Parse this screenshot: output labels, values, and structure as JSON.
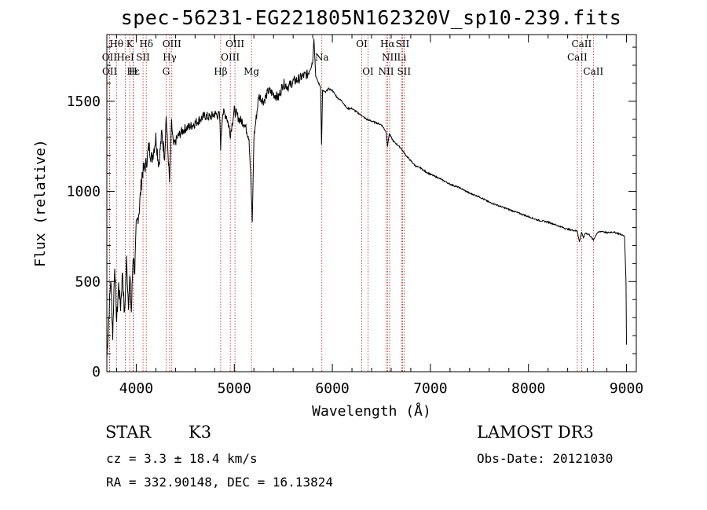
{
  "header": {
    "title": "spec-56231-EG221805N162320V_sp10-239.fits"
  },
  "info": {
    "obj_class": "STAR",
    "obj_subclass": "K3",
    "survey": "LAMOST DR3",
    "cz": "cz = 3.3 ± 18.4 km/s",
    "obs_date": "Obs-Date: 20121030",
    "radec": "RA = 332.90148, DEC =  16.13824"
  },
  "chart_data": {
    "type": "line",
    "title": "spec-56231-EG221805N162320V_sp10-239.fits",
    "xlabel": "Wavelength (Å)",
    "ylabel": "Flux (relative)",
    "xlim": [
      3700,
      9100
    ],
    "ylim": [
      0,
      1870
    ],
    "xticks": [
      4000,
      5000,
      6000,
      7000,
      8000,
      9000
    ],
    "yticks": [
      0,
      500,
      1000,
      1500
    ],
    "grid": false,
    "series": [
      {
        "name": "spectrum",
        "x": [
          3700,
          3720,
          3740,
          3760,
          3780,
          3800,
          3820,
          3840,
          3860,
          3880,
          3900,
          3920,
          3935,
          3950,
          3968,
          3985,
          4000,
          4030,
          4060,
          4100,
          4130,
          4160,
          4200,
          4230,
          4260,
          4290,
          4305,
          4320,
          4340,
          4360,
          4380,
          4420,
          4460,
          4500,
          4550,
          4600,
          4650,
          4700,
          4750,
          4800,
          4850,
          4861,
          4880,
          4920,
          4960,
          5000,
          5050,
          5100,
          5150,
          5170,
          5183,
          5200,
          5250,
          5300,
          5350,
          5400,
          5450,
          5500,
          5550,
          5600,
          5650,
          5700,
          5750,
          5780,
          5800,
          5812,
          5830,
          5860,
          5880,
          5890,
          5900,
          5930,
          5960,
          6000,
          6050,
          6100,
          6150,
          6200,
          6250,
          6300,
          6350,
          6400,
          6450,
          6500,
          6550,
          6563,
          6580,
          6620,
          6660,
          6700,
          6750,
          6800,
          6850,
          6900,
          6950,
          7000,
          7100,
          7200,
          7300,
          7400,
          7500,
          7600,
          7700,
          7800,
          7900,
          8000,
          8100,
          8200,
          8300,
          8400,
          8498,
          8520,
          8542,
          8560,
          8580,
          8620,
          8662,
          8700,
          8750,
          8800,
          8850,
          8900,
          8950,
          8980,
          8995,
          9000
        ],
        "values": [
          80,
          300,
          520,
          200,
          600,
          280,
          480,
          360,
          560,
          300,
          620,
          380,
          520,
          330,
          650,
          560,
          800,
          900,
          1100,
          1150,
          1250,
          1180,
          1300,
          1150,
          1320,
          1200,
          1420,
          1250,
          1050,
          1380,
          1250,
          1300,
          1330,
          1350,
          1360,
          1380,
          1400,
          1420,
          1410,
          1430,
          1420,
          1250,
          1440,
          1420,
          1320,
          1450,
          1400,
          1380,
          1300,
          1050,
          820,
          1300,
          1530,
          1500,
          1560,
          1540,
          1520,
          1600,
          1580,
          1610,
          1620,
          1640,
          1650,
          1700,
          1720,
          1850,
          1640,
          1600,
          1580,
          1260,
          1560,
          1550,
          1570,
          1560,
          1520,
          1500,
          1460,
          1460,
          1440,
          1420,
          1400,
          1390,
          1380,
          1370,
          1330,
          1250,
          1320,
          1280,
          1260,
          1240,
          1200,
          1170,
          1140,
          1130,
          1110,
          1095,
          1070,
          1040,
          1020,
          990,
          970,
          940,
          920,
          900,
          880,
          860,
          840,
          830,
          810,
          790,
          780,
          720,
          775,
          740,
          770,
          760,
          730,
          770,
          780,
          770,
          775,
          770,
          760,
          750,
          500,
          150
        ]
      }
    ],
    "lines_top": [
      {
        "label": "Hθ",
        "x": 3798,
        "row": 0
      },
      {
        "label": "K",
        "x": 3934,
        "row": 0
      },
      {
        "label": "Hδ",
        "x": 4102,
        "row": 0
      },
      {
        "label": "OIII",
        "x": 4363,
        "row": 0
      },
      {
        "label": "OIII",
        "x": 5007,
        "row": 0
      },
      {
        "label": "OI",
        "x": 6300,
        "row": 0
      },
      {
        "label": "Hα",
        "x": 6563,
        "row": 0
      },
      {
        "label": "SII",
        "x": 6716,
        "row": 0
      },
      {
        "label": "CaII",
        "x": 8542,
        "row": 0
      },
      {
        "label": "OII",
        "x": 3727,
        "row": 1
      },
      {
        "label": "HeI",
        "x": 3889,
        "row": 1
      },
      {
        "label": "SII",
        "x": 4069,
        "row": 1
      },
      {
        "label": "Hγ",
        "x": 4341,
        "row": 1
      },
      {
        "label": "OIII",
        "x": 4959,
        "row": 1
      },
      {
        "label": "Na",
        "x": 5893,
        "row": 1
      },
      {
        "label": "NII",
        "x": 6584,
        "row": 1
      },
      {
        "label": "Li",
        "x": 6708,
        "row": 1
      },
      {
        "label": "CaII",
        "x": 8498,
        "row": 1
      },
      {
        "label": "OII",
        "x": 3729,
        "row": 2
      },
      {
        "label": "Hε",
        "x": 3970,
        "row": 2
      },
      {
        "label": "H",
        "x": 3968,
        "row": 2
      },
      {
        "label": "G",
        "x": 4304,
        "row": 2
      },
      {
        "label": "Hβ",
        "x": 4861,
        "row": 2
      },
      {
        "label": "Mg",
        "x": 5175,
        "row": 2
      },
      {
        "label": "OI",
        "x": 6364,
        "row": 2
      },
      {
        "label": "NII",
        "x": 6548,
        "row": 2
      },
      {
        "label": "SII",
        "x": 6731,
        "row": 2
      },
      {
        "label": "CaII",
        "x": 8662,
        "row": 2
      }
    ]
  }
}
